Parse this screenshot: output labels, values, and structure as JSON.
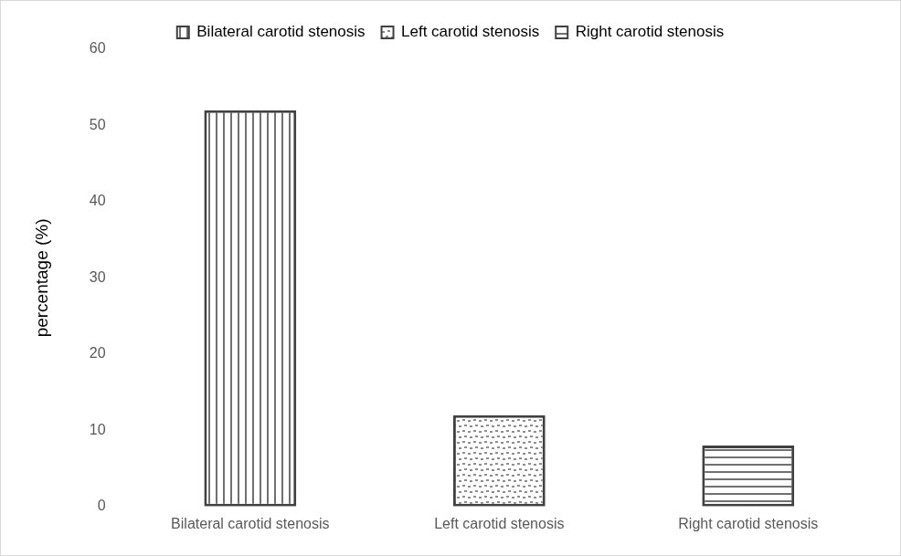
{
  "chart_data": {
    "type": "bar",
    "y_label": "percentage (%)",
    "categories": [
      "Bilateral carotid stenosis",
      "Left carotid stenosis",
      "Right carotid stenosis"
    ],
    "values": [
      52,
      12,
      8
    ],
    "color": "#404040",
    "ylim": [
      0,
      60
    ],
    "yticks": [
      0,
      10,
      20,
      30,
      40,
      50,
      60
    ],
    "grid": false,
    "legend": "top"
  }
}
